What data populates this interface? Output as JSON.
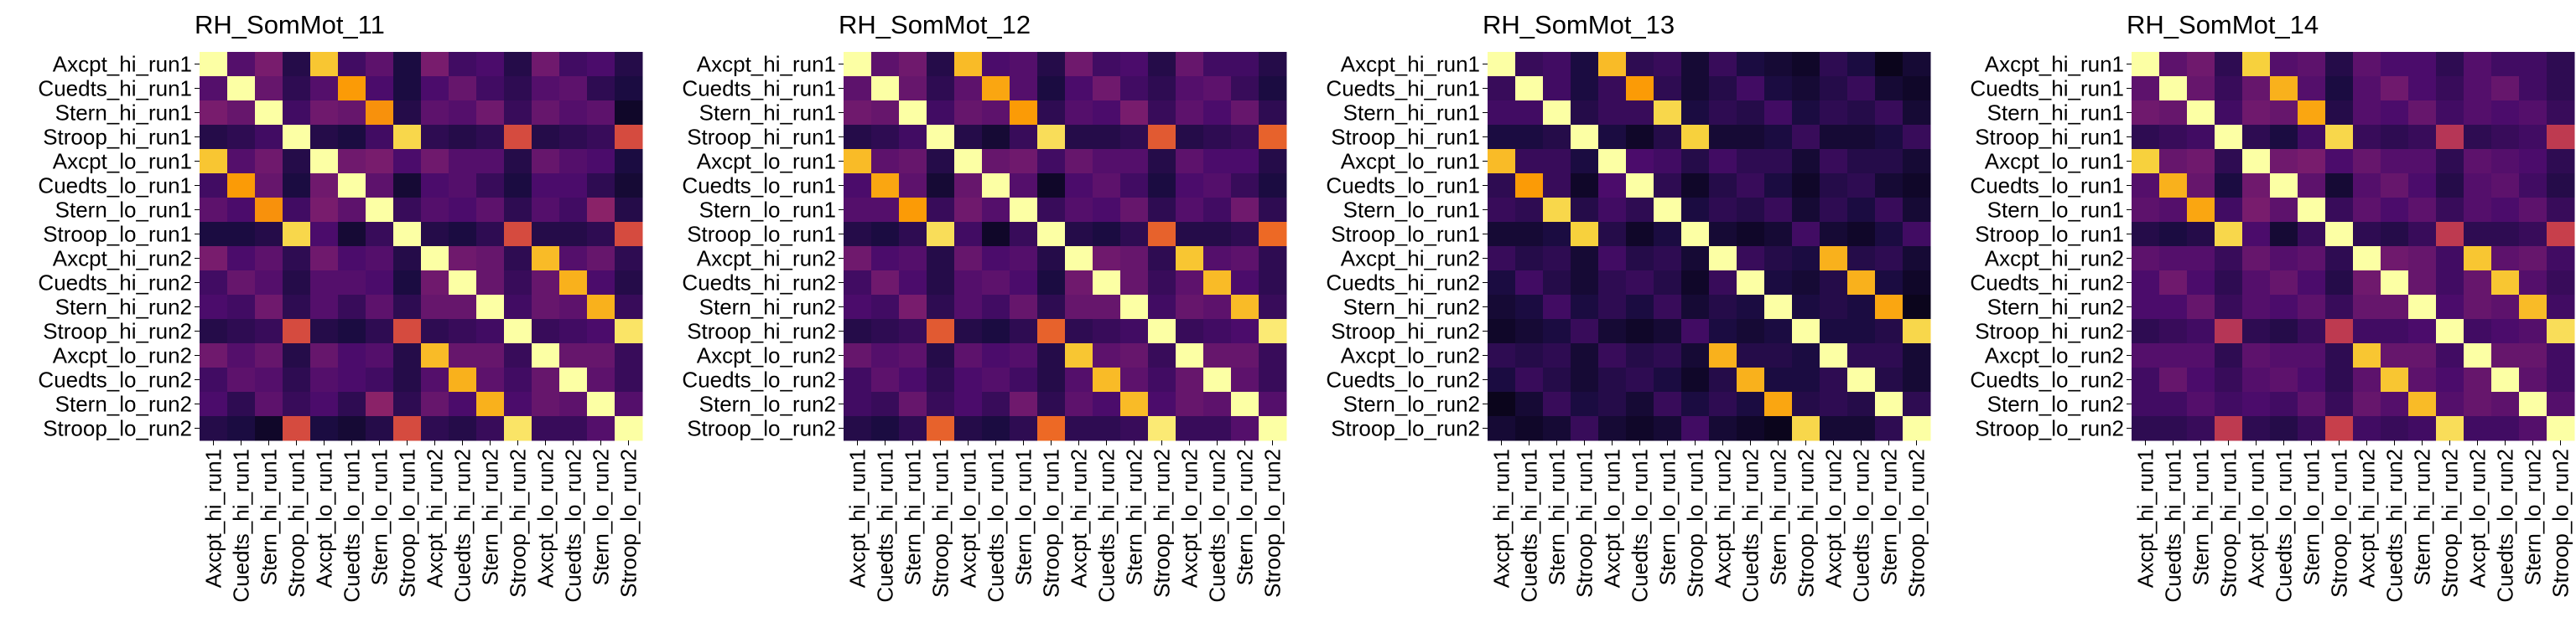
{
  "chart_data": [
    {
      "type": "heatmap",
      "title": "RH_SomMot_11",
      "labels": [
        "Axcpt_hi_run1",
        "Cuedts_hi_run1",
        "Stern_hi_run1",
        "Stroop_hi_run1",
        "Axcpt_lo_run1",
        "Cuedts_lo_run1",
        "Stern_lo_run1",
        "Stroop_lo_run1",
        "Axcpt_hi_run2",
        "Cuedts_hi_run2",
        "Stern_hi_run2",
        "Stroop_hi_run2",
        "Axcpt_lo_run2",
        "Cuedts_lo_run2",
        "Stern_lo_run2",
        "Stroop_lo_run2"
      ],
      "colormap": "inferno",
      "values": [
        [
          1.0,
          0.22,
          0.3,
          0.12,
          0.78,
          0.18,
          0.24,
          0.1,
          0.3,
          0.18,
          0.2,
          0.12,
          0.28,
          0.18,
          0.2,
          0.12
        ],
        [
          0.22,
          1.0,
          0.26,
          0.14,
          0.22,
          0.7,
          0.2,
          0.1,
          0.2,
          0.26,
          0.18,
          0.14,
          0.22,
          0.24,
          0.14,
          0.1
        ],
        [
          0.3,
          0.26,
          1.0,
          0.18,
          0.28,
          0.26,
          0.68,
          0.12,
          0.24,
          0.22,
          0.28,
          0.16,
          0.26,
          0.22,
          0.24,
          0.06
        ],
        [
          0.12,
          0.14,
          0.18,
          1.0,
          0.12,
          0.1,
          0.18,
          0.82,
          0.14,
          0.12,
          0.14,
          0.52,
          0.12,
          0.14,
          0.16,
          0.52
        ],
        [
          0.78,
          0.22,
          0.28,
          0.12,
          1.0,
          0.28,
          0.3,
          0.2,
          0.28,
          0.22,
          0.22,
          0.12,
          0.26,
          0.22,
          0.2,
          0.1
        ],
        [
          0.18,
          0.7,
          0.26,
          0.1,
          0.28,
          1.0,
          0.24,
          0.08,
          0.2,
          0.22,
          0.16,
          0.1,
          0.2,
          0.2,
          0.14,
          0.08
        ],
        [
          0.24,
          0.2,
          0.68,
          0.18,
          0.3,
          0.24,
          1.0,
          0.16,
          0.22,
          0.2,
          0.24,
          0.14,
          0.22,
          0.18,
          0.34,
          0.12
        ],
        [
          0.1,
          0.1,
          0.12,
          0.82,
          0.2,
          0.08,
          0.16,
          1.0,
          0.12,
          0.1,
          0.14,
          0.52,
          0.12,
          0.12,
          0.14,
          0.52
        ],
        [
          0.3,
          0.2,
          0.24,
          0.14,
          0.28,
          0.2,
          0.22,
          0.12,
          1.0,
          0.28,
          0.26,
          0.14,
          0.76,
          0.22,
          0.26,
          0.14
        ],
        [
          0.18,
          0.26,
          0.22,
          0.12,
          0.22,
          0.22,
          0.2,
          0.1,
          0.28,
          1.0,
          0.26,
          0.16,
          0.26,
          0.74,
          0.2,
          0.12
        ],
        [
          0.2,
          0.18,
          0.28,
          0.14,
          0.22,
          0.16,
          0.24,
          0.14,
          0.26,
          0.26,
          1.0,
          0.18,
          0.26,
          0.24,
          0.74,
          0.16
        ],
        [
          0.12,
          0.14,
          0.16,
          0.52,
          0.12,
          0.1,
          0.14,
          0.52,
          0.14,
          0.16,
          0.18,
          1.0,
          0.16,
          0.18,
          0.2,
          0.86
        ],
        [
          0.28,
          0.22,
          0.26,
          0.12,
          0.26,
          0.2,
          0.22,
          0.12,
          0.76,
          0.26,
          0.26,
          0.16,
          1.0,
          0.26,
          0.26,
          0.16
        ],
        [
          0.18,
          0.24,
          0.22,
          0.14,
          0.22,
          0.2,
          0.18,
          0.12,
          0.22,
          0.74,
          0.24,
          0.18,
          0.26,
          1.0,
          0.24,
          0.16
        ],
        [
          0.2,
          0.14,
          0.24,
          0.16,
          0.2,
          0.14,
          0.34,
          0.14,
          0.26,
          0.2,
          0.74,
          0.2,
          0.26,
          0.24,
          1.0,
          0.22
        ],
        [
          0.12,
          0.1,
          0.06,
          0.52,
          0.1,
          0.08,
          0.12,
          0.52,
          0.14,
          0.12,
          0.16,
          0.86,
          0.16,
          0.16,
          0.22,
          1.0
        ]
      ]
    },
    {
      "type": "heatmap",
      "title": "RH_SomMot_12",
      "labels": [
        "Axcpt_hi_run1",
        "Cuedts_hi_run1",
        "Stern_hi_run1",
        "Stroop_hi_run1",
        "Axcpt_lo_run1",
        "Cuedts_lo_run1",
        "Stern_lo_run1",
        "Stroop_lo_run1",
        "Axcpt_hi_run2",
        "Cuedts_hi_run2",
        "Stern_hi_run2",
        "Stroop_hi_run2",
        "Axcpt_lo_run2",
        "Cuedts_lo_run2",
        "Stern_lo_run2",
        "Stroop_lo_run2"
      ],
      "colormap": "inferno",
      "values": [
        [
          1.0,
          0.24,
          0.28,
          0.12,
          0.76,
          0.2,
          0.22,
          0.12,
          0.28,
          0.18,
          0.2,
          0.12,
          0.26,
          0.18,
          0.18,
          0.12
        ],
        [
          0.24,
          1.0,
          0.26,
          0.14,
          0.24,
          0.72,
          0.22,
          0.1,
          0.2,
          0.28,
          0.18,
          0.14,
          0.22,
          0.24,
          0.16,
          0.1
        ],
        [
          0.28,
          0.26,
          1.0,
          0.18,
          0.26,
          0.24,
          0.7,
          0.14,
          0.22,
          0.2,
          0.3,
          0.16,
          0.24,
          0.2,
          0.26,
          0.14
        ],
        [
          0.12,
          0.14,
          0.18,
          1.0,
          0.12,
          0.08,
          0.16,
          0.84,
          0.12,
          0.12,
          0.14,
          0.56,
          0.12,
          0.14,
          0.16,
          0.58
        ],
        [
          0.76,
          0.24,
          0.26,
          0.12,
          1.0,
          0.26,
          0.28,
          0.18,
          0.26,
          0.22,
          0.22,
          0.12,
          0.24,
          0.2,
          0.2,
          0.12
        ],
        [
          0.2,
          0.72,
          0.24,
          0.08,
          0.26,
          1.0,
          0.22,
          0.06,
          0.2,
          0.24,
          0.18,
          0.1,
          0.2,
          0.22,
          0.16,
          0.1
        ],
        [
          0.22,
          0.22,
          0.7,
          0.16,
          0.28,
          0.22,
          1.0,
          0.16,
          0.22,
          0.2,
          0.26,
          0.14,
          0.22,
          0.18,
          0.28,
          0.14
        ],
        [
          0.12,
          0.1,
          0.14,
          0.84,
          0.18,
          0.06,
          0.16,
          1.0,
          0.12,
          0.1,
          0.14,
          0.58,
          0.12,
          0.12,
          0.14,
          0.6
        ],
        [
          0.28,
          0.2,
          0.22,
          0.12,
          0.26,
          0.2,
          0.22,
          0.12,
          1.0,
          0.28,
          0.26,
          0.14,
          0.78,
          0.22,
          0.24,
          0.14
        ],
        [
          0.18,
          0.28,
          0.2,
          0.12,
          0.22,
          0.24,
          0.2,
          0.1,
          0.28,
          1.0,
          0.26,
          0.16,
          0.24,
          0.76,
          0.2,
          0.14
        ],
        [
          0.2,
          0.18,
          0.3,
          0.14,
          0.22,
          0.18,
          0.26,
          0.14,
          0.26,
          0.26,
          1.0,
          0.18,
          0.26,
          0.24,
          0.76,
          0.16
        ],
        [
          0.12,
          0.14,
          0.16,
          0.56,
          0.12,
          0.1,
          0.14,
          0.58,
          0.14,
          0.16,
          0.18,
          1.0,
          0.16,
          0.18,
          0.2,
          0.88
        ],
        [
          0.26,
          0.22,
          0.24,
          0.12,
          0.24,
          0.2,
          0.22,
          0.12,
          0.78,
          0.24,
          0.26,
          0.16,
          1.0,
          0.26,
          0.26,
          0.16
        ],
        [
          0.18,
          0.24,
          0.2,
          0.14,
          0.2,
          0.22,
          0.18,
          0.12,
          0.22,
          0.76,
          0.24,
          0.18,
          0.26,
          1.0,
          0.24,
          0.16
        ],
        [
          0.18,
          0.16,
          0.26,
          0.16,
          0.2,
          0.16,
          0.28,
          0.14,
          0.24,
          0.2,
          0.76,
          0.2,
          0.26,
          0.24,
          1.0,
          0.22
        ],
        [
          0.12,
          0.1,
          0.14,
          0.58,
          0.12,
          0.1,
          0.14,
          0.6,
          0.14,
          0.14,
          0.16,
          0.88,
          0.16,
          0.16,
          0.22,
          1.0
        ]
      ]
    },
    {
      "type": "heatmap",
      "title": "RH_SomMot_13",
      "labels": [
        "Axcpt_hi_run1",
        "Cuedts_hi_run1",
        "Stern_hi_run1",
        "Stroop_hi_run1",
        "Axcpt_lo_run1",
        "Cuedts_lo_run1",
        "Stern_lo_run1",
        "Stroop_lo_run1",
        "Axcpt_hi_run2",
        "Cuedts_hi_run2",
        "Stern_hi_run2",
        "Stroop_hi_run2",
        "Axcpt_lo_run2",
        "Cuedts_lo_run2",
        "Stern_lo_run2",
        "Stroop_lo_run2"
      ],
      "colormap": "inferno",
      "values": [
        [
          1.0,
          0.16,
          0.18,
          0.1,
          0.76,
          0.14,
          0.16,
          0.08,
          0.16,
          0.1,
          0.08,
          0.06,
          0.14,
          0.1,
          0.04,
          0.08
        ],
        [
          0.16,
          1.0,
          0.18,
          0.1,
          0.16,
          0.7,
          0.14,
          0.08,
          0.12,
          0.18,
          0.1,
          0.08,
          0.12,
          0.16,
          0.08,
          0.06
        ],
        [
          0.18,
          0.18,
          1.0,
          0.12,
          0.16,
          0.16,
          0.82,
          0.1,
          0.14,
          0.12,
          0.18,
          0.1,
          0.14,
          0.12,
          0.16,
          0.08
        ],
        [
          0.1,
          0.1,
          0.12,
          1.0,
          0.1,
          0.06,
          0.12,
          0.8,
          0.08,
          0.08,
          0.1,
          0.16,
          0.08,
          0.08,
          0.1,
          0.16
        ],
        [
          0.76,
          0.16,
          0.16,
          0.1,
          1.0,
          0.2,
          0.18,
          0.12,
          0.18,
          0.14,
          0.14,
          0.08,
          0.16,
          0.12,
          0.12,
          0.08
        ],
        [
          0.14,
          0.7,
          0.16,
          0.06,
          0.2,
          1.0,
          0.14,
          0.06,
          0.12,
          0.16,
          0.1,
          0.06,
          0.12,
          0.14,
          0.08,
          0.06
        ],
        [
          0.16,
          0.14,
          0.82,
          0.12,
          0.18,
          0.14,
          1.0,
          0.1,
          0.14,
          0.12,
          0.16,
          0.08,
          0.14,
          0.1,
          0.16,
          0.08
        ],
        [
          0.08,
          0.08,
          0.1,
          0.8,
          0.12,
          0.06,
          0.1,
          1.0,
          0.08,
          0.06,
          0.08,
          0.18,
          0.08,
          0.06,
          0.1,
          0.18
        ],
        [
          0.16,
          0.12,
          0.14,
          0.08,
          0.18,
          0.12,
          0.14,
          0.08,
          1.0,
          0.16,
          0.12,
          0.1,
          0.74,
          0.12,
          0.14,
          0.08
        ],
        [
          0.1,
          0.18,
          0.12,
          0.08,
          0.14,
          0.16,
          0.12,
          0.06,
          0.16,
          1.0,
          0.1,
          0.08,
          0.12,
          0.74,
          0.1,
          0.06
        ],
        [
          0.08,
          0.1,
          0.18,
          0.1,
          0.14,
          0.1,
          0.16,
          0.08,
          0.12,
          0.1,
          1.0,
          0.1,
          0.12,
          0.1,
          0.72,
          0.04
        ],
        [
          0.06,
          0.08,
          0.1,
          0.16,
          0.08,
          0.06,
          0.08,
          0.18,
          0.1,
          0.08,
          0.1,
          1.0,
          0.1,
          0.1,
          0.12,
          0.82
        ],
        [
          0.14,
          0.12,
          0.14,
          0.08,
          0.16,
          0.12,
          0.14,
          0.08,
          0.74,
          0.12,
          0.12,
          0.1,
          1.0,
          0.14,
          0.14,
          0.08
        ],
        [
          0.1,
          0.16,
          0.12,
          0.08,
          0.12,
          0.14,
          0.1,
          0.06,
          0.12,
          0.74,
          0.1,
          0.1,
          0.14,
          1.0,
          0.12,
          0.08
        ],
        [
          0.04,
          0.08,
          0.16,
          0.1,
          0.12,
          0.08,
          0.16,
          0.1,
          0.14,
          0.1,
          0.72,
          0.12,
          0.14,
          0.12,
          1.0,
          0.14
        ],
        [
          0.08,
          0.06,
          0.08,
          0.16,
          0.08,
          0.06,
          0.08,
          0.18,
          0.08,
          0.06,
          0.04,
          0.82,
          0.08,
          0.08,
          0.14,
          1.0
        ]
      ]
    },
    {
      "type": "heatmap",
      "title": "RH_SomMot_14",
      "labels": [
        "Axcpt_hi_run1",
        "Cuedts_hi_run1",
        "Stern_hi_run1",
        "Stroop_hi_run1",
        "Axcpt_lo_run1",
        "Cuedts_lo_run1",
        "Stern_lo_run1",
        "Stroop_lo_run1",
        "Axcpt_hi_run2",
        "Cuedts_hi_run2",
        "Stern_hi_run2",
        "Stroop_hi_run2",
        "Axcpt_lo_run2",
        "Cuedts_lo_run2",
        "Stern_lo_run2",
        "Stroop_lo_run2"
      ],
      "colormap": "inferno",
      "values": [
        [
          1.0,
          0.24,
          0.28,
          0.14,
          0.8,
          0.22,
          0.24,
          0.12,
          0.24,
          0.2,
          0.2,
          0.14,
          0.22,
          0.18,
          0.18,
          0.14
        ],
        [
          0.24,
          1.0,
          0.26,
          0.16,
          0.26,
          0.74,
          0.22,
          0.1,
          0.22,
          0.28,
          0.2,
          0.16,
          0.22,
          0.26,
          0.18,
          0.14
        ],
        [
          0.28,
          0.26,
          1.0,
          0.18,
          0.28,
          0.26,
          0.72,
          0.12,
          0.22,
          0.2,
          0.26,
          0.18,
          0.22,
          0.2,
          0.22,
          0.16
        ],
        [
          0.14,
          0.16,
          0.18,
          1.0,
          0.14,
          0.1,
          0.18,
          0.82,
          0.16,
          0.14,
          0.16,
          0.44,
          0.14,
          0.16,
          0.18,
          0.46
        ],
        [
          0.8,
          0.26,
          0.28,
          0.14,
          1.0,
          0.28,
          0.3,
          0.2,
          0.26,
          0.22,
          0.22,
          0.14,
          0.24,
          0.22,
          0.2,
          0.14
        ],
        [
          0.22,
          0.74,
          0.26,
          0.1,
          0.28,
          1.0,
          0.24,
          0.08,
          0.22,
          0.26,
          0.2,
          0.12,
          0.22,
          0.24,
          0.18,
          0.12
        ],
        [
          0.24,
          0.22,
          0.72,
          0.18,
          0.3,
          0.24,
          1.0,
          0.16,
          0.24,
          0.2,
          0.24,
          0.16,
          0.22,
          0.2,
          0.24,
          0.16
        ],
        [
          0.12,
          0.1,
          0.12,
          0.82,
          0.2,
          0.08,
          0.16,
          1.0,
          0.14,
          0.12,
          0.16,
          0.46,
          0.14,
          0.14,
          0.16,
          0.48
        ],
        [
          0.24,
          0.22,
          0.22,
          0.16,
          0.26,
          0.22,
          0.24,
          0.14,
          1.0,
          0.28,
          0.26,
          0.18,
          0.78,
          0.24,
          0.26,
          0.18
        ],
        [
          0.2,
          0.28,
          0.2,
          0.14,
          0.22,
          0.26,
          0.2,
          0.12,
          0.28,
          1.0,
          0.26,
          0.18,
          0.26,
          0.78,
          0.22,
          0.16
        ],
        [
          0.2,
          0.2,
          0.26,
          0.16,
          0.22,
          0.2,
          0.24,
          0.16,
          0.26,
          0.26,
          1.0,
          0.2,
          0.26,
          0.24,
          0.76,
          0.18
        ],
        [
          0.14,
          0.16,
          0.18,
          0.44,
          0.14,
          0.12,
          0.16,
          0.46,
          0.18,
          0.18,
          0.2,
          1.0,
          0.18,
          0.2,
          0.22,
          0.84
        ],
        [
          0.22,
          0.22,
          0.22,
          0.14,
          0.24,
          0.22,
          0.22,
          0.14,
          0.78,
          0.26,
          0.26,
          0.18,
          1.0,
          0.26,
          0.26,
          0.18
        ],
        [
          0.18,
          0.26,
          0.2,
          0.16,
          0.22,
          0.24,
          0.2,
          0.14,
          0.24,
          0.78,
          0.24,
          0.2,
          0.26,
          1.0,
          0.24,
          0.18
        ],
        [
          0.18,
          0.18,
          0.22,
          0.18,
          0.2,
          0.18,
          0.24,
          0.16,
          0.26,
          0.22,
          0.76,
          0.22,
          0.26,
          0.24,
          1.0,
          0.22
        ],
        [
          0.14,
          0.14,
          0.16,
          0.46,
          0.14,
          0.12,
          0.16,
          0.48,
          0.18,
          0.16,
          0.18,
          0.84,
          0.18,
          0.18,
          0.22,
          1.0
        ]
      ]
    }
  ]
}
